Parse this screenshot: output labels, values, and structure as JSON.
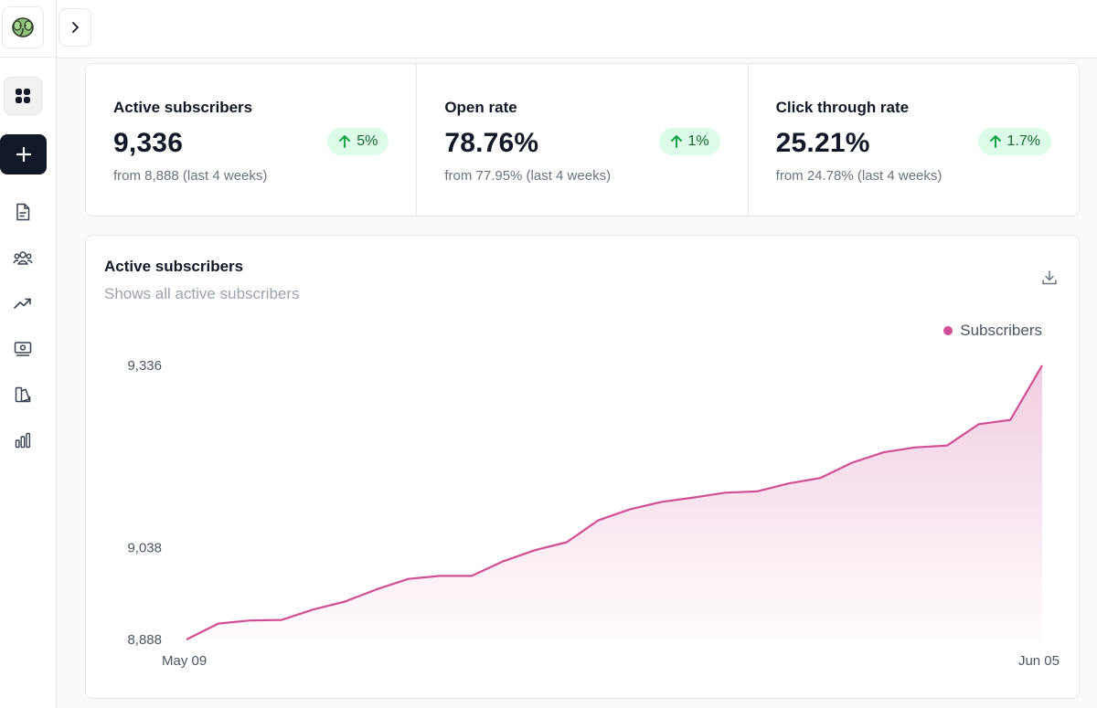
{
  "sidebar": {
    "logo": "elephant-logo",
    "items": [
      {
        "name": "dashboard",
        "icon": "grid-icon"
      },
      {
        "name": "new",
        "icon": "plus-icon"
      },
      {
        "name": "posts",
        "icon": "document-icon"
      },
      {
        "name": "audience",
        "icon": "users-icon"
      },
      {
        "name": "growth",
        "icon": "trending-up-icon"
      },
      {
        "name": "monetization",
        "icon": "money-icon"
      },
      {
        "name": "design",
        "icon": "palette-icon"
      },
      {
        "name": "analytics",
        "icon": "bar-chart-icon"
      }
    ]
  },
  "topbar": {
    "toggle_icon": "chevron-right-icon"
  },
  "stats": [
    {
      "label": "Active subscribers",
      "value": "9,336",
      "change": "5%",
      "sub": "from 8,888 (last 4 weeks)"
    },
    {
      "label": "Open rate",
      "value": "78.76%",
      "change": "1%",
      "sub": "from 77.95% (last 4 weeks)"
    },
    {
      "label": "Click through rate",
      "value": "25.21%",
      "change": "1.7%",
      "sub": "from 24.78% (last 4 weeks)"
    }
  ],
  "chart": {
    "title": "Active subscribers",
    "subtitle": "Shows all active subscribers",
    "legend": "Subscribers",
    "download_icon": "download-icon"
  },
  "colors": {
    "accent": "#d14e95",
    "positive_bg": "#dcfce7",
    "positive_fg": "#15803d"
  },
  "chart_data": {
    "type": "area",
    "series": [
      {
        "name": "Subscribers",
        "values": [
          8888,
          8914,
          8919,
          8920,
          8937,
          8950,
          8970,
          8987,
          8992,
          8992,
          9016,
          9034,
          9047,
          9083,
          9101,
          9113,
          9120,
          9128,
          9130,
          9143,
          9152,
          9177,
          9194,
          9202,
          9205,
          9240,
          9247,
          9336
        ]
      }
    ],
    "x_tick_labels": [
      "May 09",
      "Jun 05"
    ],
    "y_tick_labels": [
      "8,888",
      "9,038",
      "9,336"
    ],
    "y_ticks": [
      8888,
      9038,
      9336
    ],
    "ylim": [
      8888,
      9336
    ],
    "grid": false,
    "legend_position": "top-right"
  }
}
